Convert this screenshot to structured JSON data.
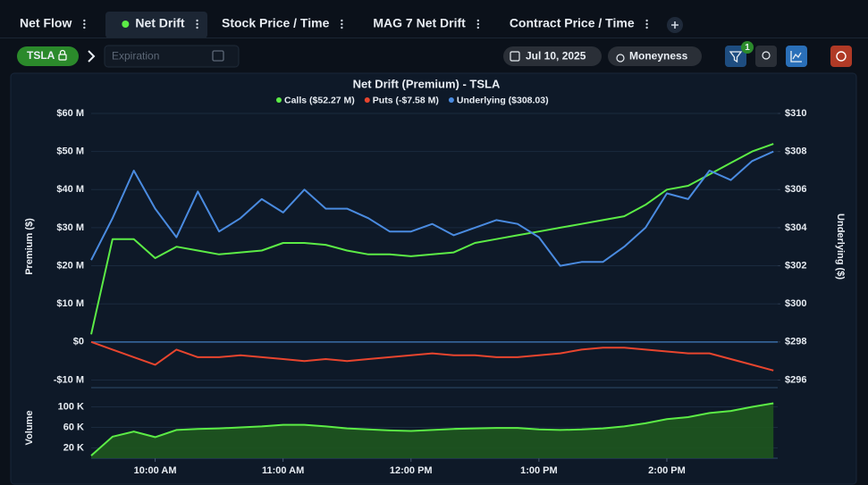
{
  "tabs": [
    "Net Flow",
    "Net Drift",
    "Stock Price / Time",
    "MAG 7 Net Drift",
    "Contract Price / Time"
  ],
  "active_tab": 1,
  "toolbar": {
    "ticker": "TSLA",
    "expiration_placeholder": "Expiration",
    "date": "Jul 10, 2025",
    "moneyness": "Moneyness",
    "filter_count": "1"
  },
  "chart_data": [
    {
      "type": "line",
      "title": "Net Drift (Premium) - TSLA",
      "ylabel": "Premium ($)",
      "y2label": "Underlying ($)",
      "x": [
        570,
        580,
        590,
        600,
        610,
        620,
        630,
        640,
        650,
        660,
        670,
        680,
        690,
        700,
        710,
        720,
        730,
        740,
        750,
        760,
        770,
        780,
        790,
        800,
        810,
        820,
        830,
        840,
        850,
        860,
        870,
        880,
        890
      ],
      "xlim": [
        570,
        892
      ],
      "ylim": [
        -12,
        60
      ],
      "yticks": [
        {
          "value": 60,
          "label": "$60 M"
        },
        {
          "value": 50,
          "label": "$50 M"
        },
        {
          "value": 40,
          "label": "$40 M"
        },
        {
          "value": 30,
          "label": "$30 M"
        },
        {
          "value": 20,
          "label": "$20 M"
        },
        {
          "value": 10,
          "label": "$10 M"
        },
        {
          "value": 0,
          "label": "$0"
        },
        {
          "value": -10,
          "label": "-$10 M"
        }
      ],
      "y2lim": [
        295.6,
        310
      ],
      "y2ticks": [
        {
          "value": 310,
          "label": "$310"
        },
        {
          "value": 308,
          "label": "$308"
        },
        {
          "value": 306,
          "label": "$306"
        },
        {
          "value": 304,
          "label": "$304"
        },
        {
          "value": 302,
          "label": "$302"
        },
        {
          "value": 300,
          "label": "$300"
        },
        {
          "value": 298,
          "label": "$298"
        },
        {
          "value": 296,
          "label": "$296"
        }
      ],
      "grid": true,
      "series": [
        {
          "name": "Calls ($52.27 M)",
          "color": "#5cec46",
          "values": [
            2,
            27,
            27,
            22,
            25,
            24,
            23,
            23.5,
            24,
            26,
            26,
            25.5,
            24,
            23,
            23,
            22.5,
            23,
            23.5,
            26,
            27,
            28,
            29,
            30,
            31,
            32,
            33,
            36,
            40,
            41,
            44,
            47,
            50,
            52
          ]
        },
        {
          "name": "Puts (-$7.58 M)",
          "color": "#e8452e",
          "values": [
            0,
            -2,
            -4,
            -6,
            -2,
            -4,
            -4,
            -3.5,
            -4,
            -4.5,
            -5,
            -4.5,
            -5,
            -4.5,
            -4,
            -3.5,
            -3,
            -3.5,
            -3.5,
            -4,
            -4,
            -3.5,
            -3,
            -2,
            -1.5,
            -1.5,
            -2,
            -2.5,
            -3,
            -3,
            -4.5,
            -6,
            -7.5
          ]
        },
        {
          "name": "Underlying ($308.03)",
          "color": "#4a8be0",
          "axis": "y2",
          "values": [
            302.3,
            304.5,
            307,
            305,
            303.5,
            305.9,
            303.8,
            304.5,
            305.5,
            304.8,
            306,
            305,
            305,
            304.5,
            303.8,
            303.8,
            304.2,
            303.6,
            304,
            304.4,
            304.2,
            303.5,
            302,
            302.2,
            302.2,
            303,
            304,
            305.8,
            305.5,
            307,
            306.5,
            307.5,
            308
          ]
        }
      ]
    },
    {
      "type": "area",
      "ylabel": "Volume",
      "x": [
        570,
        580,
        590,
        600,
        610,
        620,
        630,
        640,
        650,
        660,
        670,
        680,
        690,
        700,
        710,
        720,
        730,
        740,
        750,
        760,
        770,
        780,
        790,
        800,
        810,
        820,
        830,
        840,
        850,
        860,
        870,
        880,
        890
      ],
      "xlim": [
        570,
        892
      ],
      "xticks": [
        {
          "value": 600,
          "label": "10:00 AM"
        },
        {
          "value": 660,
          "label": "11:00 AM"
        },
        {
          "value": 720,
          "label": "12:00 PM"
        },
        {
          "value": 780,
          "label": "1:00 PM"
        },
        {
          "value": 840,
          "label": "2:00 PM"
        }
      ],
      "ylim": [
        0,
        120
      ],
      "yticks": [
        {
          "value": 100,
          "label": "100 K"
        },
        {
          "value": 60,
          "label": "60 K"
        },
        {
          "value": 20,
          "label": "20 K"
        }
      ],
      "grid": true,
      "color": "#5cec46",
      "fill": "#1e561e",
      "values": [
        5,
        42,
        52,
        41,
        55,
        57,
        58,
        60,
        62,
        65,
        65,
        62,
        58,
        56,
        54,
        53,
        55,
        57,
        58,
        59,
        59,
        56,
        55,
        56,
        58,
        62,
        68,
        76,
        80,
        88,
        92,
        100,
        107
      ]
    }
  ]
}
